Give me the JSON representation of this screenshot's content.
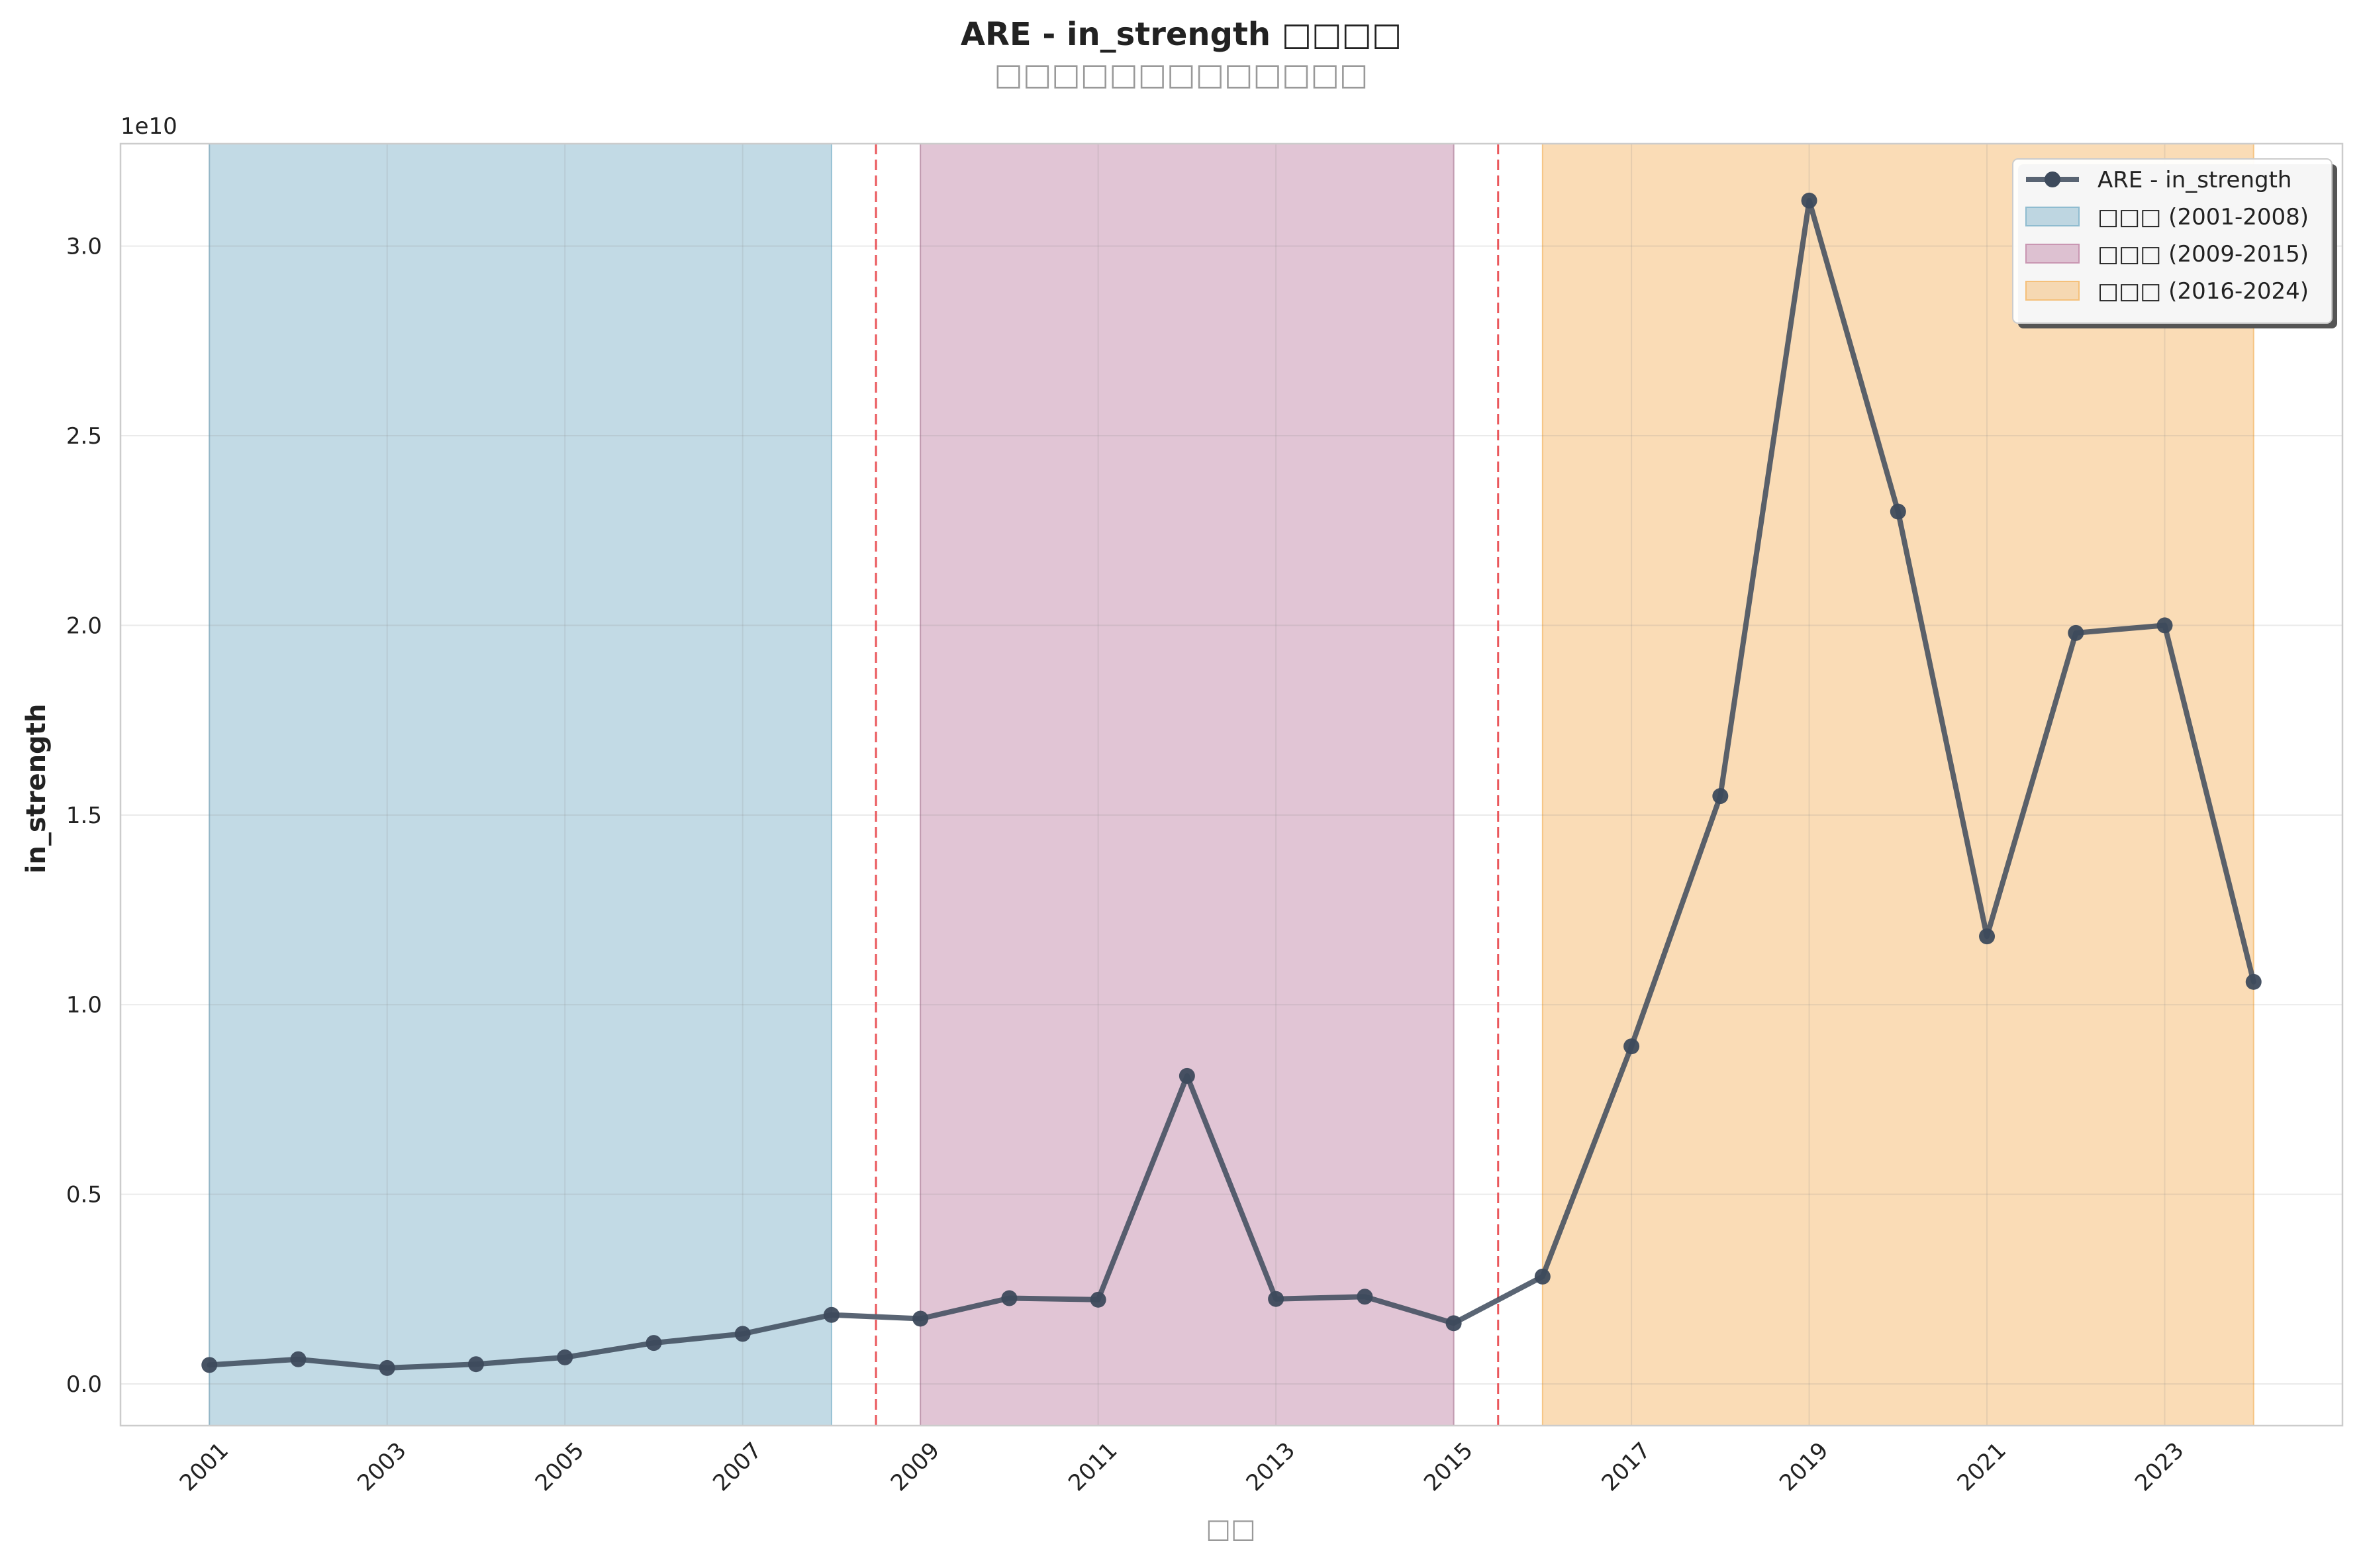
{
  "chart_data": {
    "type": "line",
    "title": "ARE - in_strength □□□□",
    "subtitle": "□□□□□□□□□□□□□",
    "xlabel": "□□",
    "ylabel": "in_strength",
    "y_offset_text": "1e10",
    "x": [
      2001,
      2002,
      2003,
      2004,
      2005,
      2006,
      2007,
      2008,
      2009,
      2010,
      2011,
      2012,
      2013,
      2014,
      2015,
      2016,
      2017,
      2018,
      2019,
      2020,
      2021,
      2022,
      2023,
      2024
    ],
    "x_ticks": [
      2001,
      2003,
      2005,
      2007,
      2009,
      2011,
      2013,
      2015,
      2017,
      2019,
      2021,
      2023
    ],
    "xlim": [
      2000.0,
      2025.0
    ],
    "ylim": [
      -0.11,
      3.27
    ],
    "y_ticks": [
      0.0,
      0.5,
      1.0,
      1.5,
      2.0,
      2.5,
      3.0
    ],
    "y_tick_labels": [
      "0.0",
      "0.5",
      "1.0",
      "1.5",
      "2.0",
      "2.5",
      "3.0"
    ],
    "y_unit_scale": 10000000000,
    "series": [
      {
        "name": "ARE - in_strength",
        "color": "#3d4a5c",
        "values": [
          0.05,
          0.065,
          0.042,
          0.052,
          0.07,
          0.108,
          0.132,
          0.182,
          0.172,
          0.226,
          0.222,
          0.812,
          0.224,
          0.23,
          0.16,
          0.283,
          0.89,
          1.55,
          3.12,
          2.3,
          1.18,
          1.98,
          2.0,
          1.06
        ]
      }
    ],
    "periods": [
      {
        "label": "□□□ (2001-2008)",
        "start": 2001,
        "end": 2008,
        "color": "#8fbcd0"
      },
      {
        "label": "□□□ (2009-2015)",
        "start": 2009,
        "end": 2015,
        "color": "#c996b2"
      },
      {
        "label": "□□□ (2016-2024)",
        "start": 2016,
        "end": 2024,
        "color": "#f5c07a"
      }
    ],
    "breakpoints": [
      2008.5,
      2015.5
    ],
    "breakpoint_color": "#e8454a",
    "grid": true,
    "legend_position": "top-right"
  }
}
